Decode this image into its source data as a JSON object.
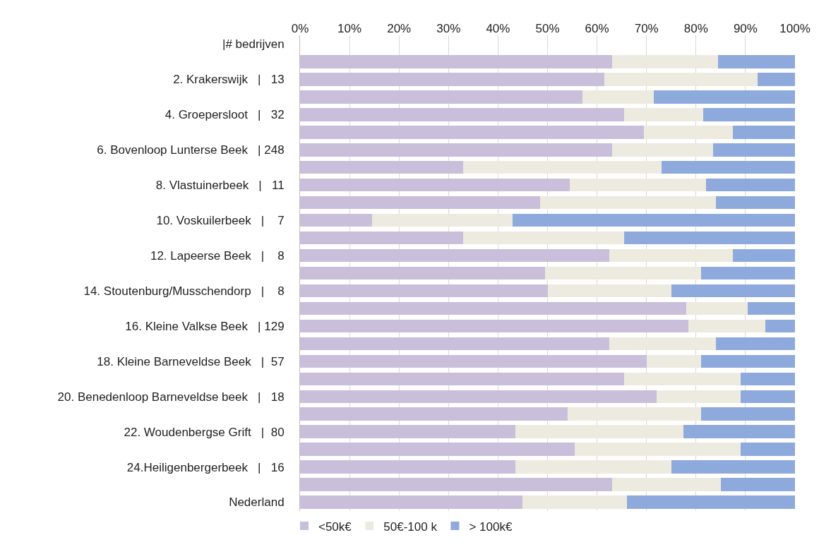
{
  "chart_data": {
    "type": "bar",
    "orientation": "horizontal",
    "stacked": true,
    "categories": [
      "|# bedrijven",
      null,
      "2. Krakerswijk   |   13",
      null,
      "4. Groepersloot   |   32",
      null,
      "6. Bovenloop Lunterse Beek   | 248",
      null,
      "8. Vlastuinerbeek   |   11",
      null,
      "10. Voskuilerbeek   |    7",
      null,
      "12. Lapeerse Beek   |    8",
      null,
      "14. Stoutenburg/Musschendorp   |    8",
      null,
      "16. Kleine Valkse Beek   | 129",
      null,
      "18. Kleine Barneveldse Beek   |  57",
      null,
      "20. Benedenloop Barneveldse beek   |   18",
      null,
      "22. Woudenbergse Grift   |  80",
      null,
      "24.Heiligenbergerbeek   |   16",
      null,
      "Nederland"
    ],
    "series": [
      {
        "name": "<50k€",
        "color": "#c9bfda",
        "values": [
          null,
          63,
          61.5,
          57,
          65.5,
          69.5,
          63,
          33,
          54.5,
          48.5,
          14.5,
          33,
          62.5,
          49.5,
          50,
          78,
          78.5,
          62.5,
          70,
          65.5,
          72,
          54,
          43.5,
          55.5,
          43.5,
          63,
          45
        ]
      },
      {
        "name": "50€-100 k",
        "color": "#edebe0",
        "values": [
          null,
          21.5,
          31,
          14.5,
          16,
          18,
          20.5,
          40,
          27.5,
          35.5,
          28.5,
          32.5,
          25,
          31.5,
          25,
          12.5,
          15.5,
          21.5,
          11,
          23.5,
          17,
          27,
          34,
          33.5,
          31.5,
          22,
          21
        ]
      },
      {
        "name": "> 100k€",
        "color": "#8eaadc",
        "values": [
          null,
          15.5,
          7.5,
          28.5,
          18.5,
          12.5,
          16.5,
          27,
          18,
          16,
          57,
          34.5,
          12.5,
          19,
          25,
          9.5,
          6,
          16,
          19,
          11,
          11,
          19,
          22.5,
          11,
          25,
          15,
          34
        ]
      }
    ],
    "xlim": [
      0,
      100
    ],
    "xticks": [
      {
        "value": 0,
        "label": "0%"
      },
      {
        "value": 10,
        "label": "10%"
      },
      {
        "value": 20,
        "label": "20%"
      },
      {
        "value": 30,
        "label": "30%"
      },
      {
        "value": 40,
        "label": "40%"
      },
      {
        "value": 50,
        "label": "50%"
      },
      {
        "value": 60,
        "label": "60%"
      },
      {
        "value": 70,
        "label": "70%"
      },
      {
        "value": 80,
        "label": "80%"
      },
      {
        "value": 90,
        "label": "90%"
      },
      {
        "value": 100,
        "label": "100%"
      }
    ],
    "grid": "x",
    "legend": "bottom left"
  }
}
